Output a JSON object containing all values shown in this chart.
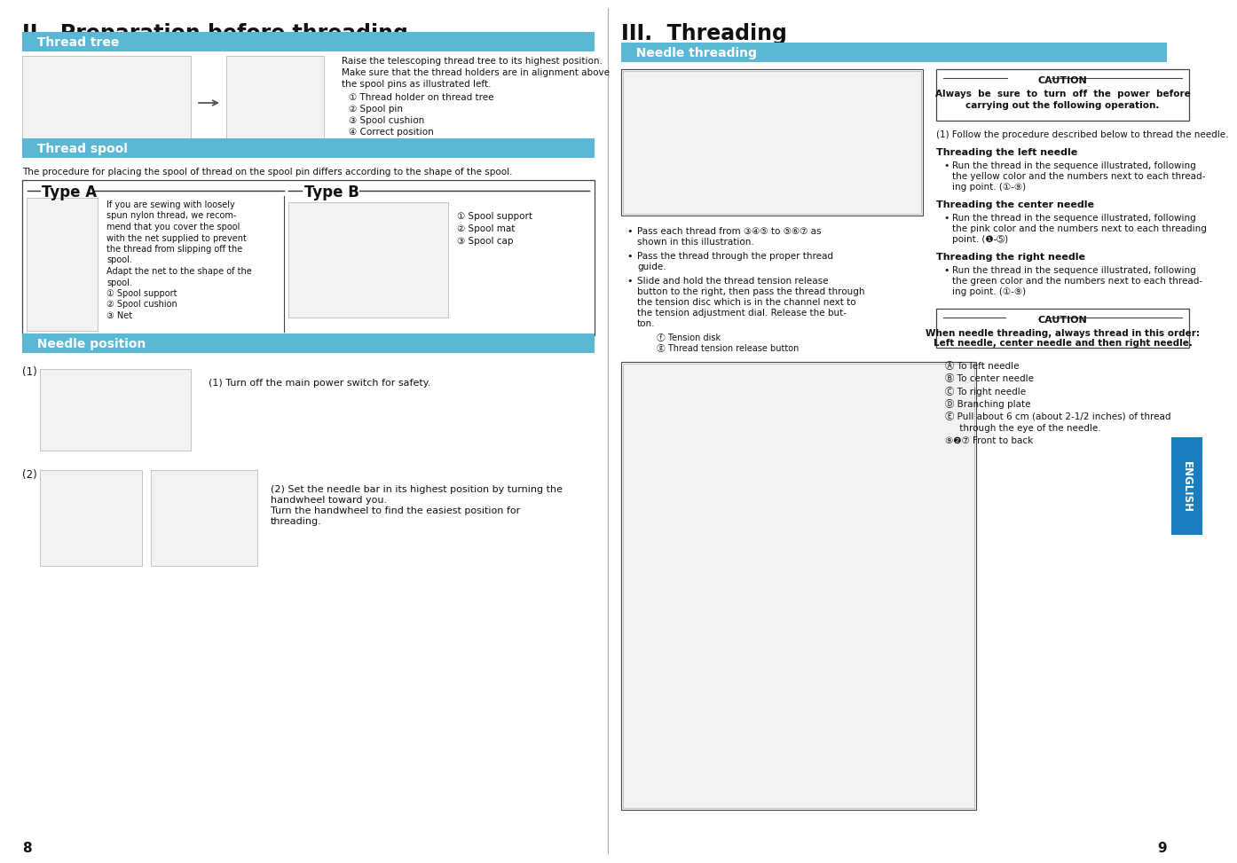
{
  "bg_color": "#ffffff",
  "header_color": "#5bb8d4",
  "header_text_color": "#ffffff",
  "english_tab_color": "#1a7fbf",
  "left_page_num": "8",
  "right_page_num": "9",
  "left_title": "II.  Preparation before threading",
  "right_title": "III.  Threading",
  "thread_tree_body": [
    "Raise the telescoping thread tree to its highest position.",
    "Make sure that the thread holders are in alignment above",
    "the spool pins as illustrated left.",
    "① Thread holder on thread tree",
    "② Spool pin",
    "③ Spool cushion",
    "④ Correct position"
  ],
  "thread_spool_intro": "The procedure for placing the spool of thread on the spool pin differs according to the shape of the spool.",
  "type_a_lines": [
    "If you are sewing with loosely",
    "spun nylon thread, we recom-",
    "mend that you cover the spool",
    "with the net supplied to prevent",
    "the thread from slipping off the",
    "spool.",
    "Adapt the net to the shape of the",
    "spool.",
    "① Spool support",
    "② Spool cushion",
    "③ Net"
  ],
  "type_b_lines": [
    "① Spool support",
    "② Spool mat",
    "③ Spool cap"
  ],
  "needle_pos_instr1": "(1) Turn off the main power switch for safety.",
  "needle_pos_instr2a": "(2) Set the needle bar in its highest position by turning the",
  "needle_pos_instr2b": "handwheel toward you.",
  "needle_pos_instr2c": "Turn the handwheel to find the easiest position for",
  "needle_pos_instr2d": "threading.",
  "caution1_title": "CAUTION",
  "caution1_lines": [
    "Always  be  sure  to  turn  off  the  power  before",
    "carrying out the following operation."
  ],
  "intro_text": "(1) Follow the procedure described below to thread the needle.",
  "left_needle_title": "Threading the left needle",
  "left_needle_lines": [
    "Run the thread in the sequence illustrated, following",
    "the yellow color and the numbers next to each thread-",
    "ing point. (①-⑨)"
  ],
  "center_needle_title": "Threading the center needle",
  "center_needle_lines": [
    "Run the thread in the sequence illustrated, following",
    "the pink color and the numbers next to each threading",
    "point. (❶-➄)"
  ],
  "right_needle_title": "Threading the right needle",
  "right_needle_lines": [
    "Run the thread in the sequence illustrated, following",
    "the green color and the numbers next to each thread-",
    "ing point. (①-⑨)"
  ],
  "caution2_title": "CAUTION",
  "caution2_lines": [
    "When needle threading, always thread in this order:",
    "Left needle, center needle and then right needle."
  ],
  "legend_lines": [
    "Ⓐ To left needle",
    "Ⓑ To center needle",
    "Ⓒ To right needle",
    "Ⓓ Branching plate",
    "Ⓔ Pull about 6 cm (about 2-1/2 inches) of thread",
    "     through the eye of the needle.",
    "⑨❷⑦ Front to back"
  ],
  "bullet1a": "Pass each thread from ③④⑤ to ⑤⑥⑦ as",
  "bullet1b": "shown in this illustration.",
  "bullet2a": "Pass the thread through the proper thread",
  "bullet2b": "guide.",
  "bullet3a": "Slide and hold the thread tension release",
  "bullet3b": "button to the right, then pass the thread through",
  "bullet3c": "the tension disc which is in the channel next to",
  "bullet3d": "the tension adjustment dial. Release the but-",
  "bullet3e": "ton.",
  "tension_disk": "ⓕ Tension disk",
  "tension_release": "ⓖ Thread tension release button"
}
